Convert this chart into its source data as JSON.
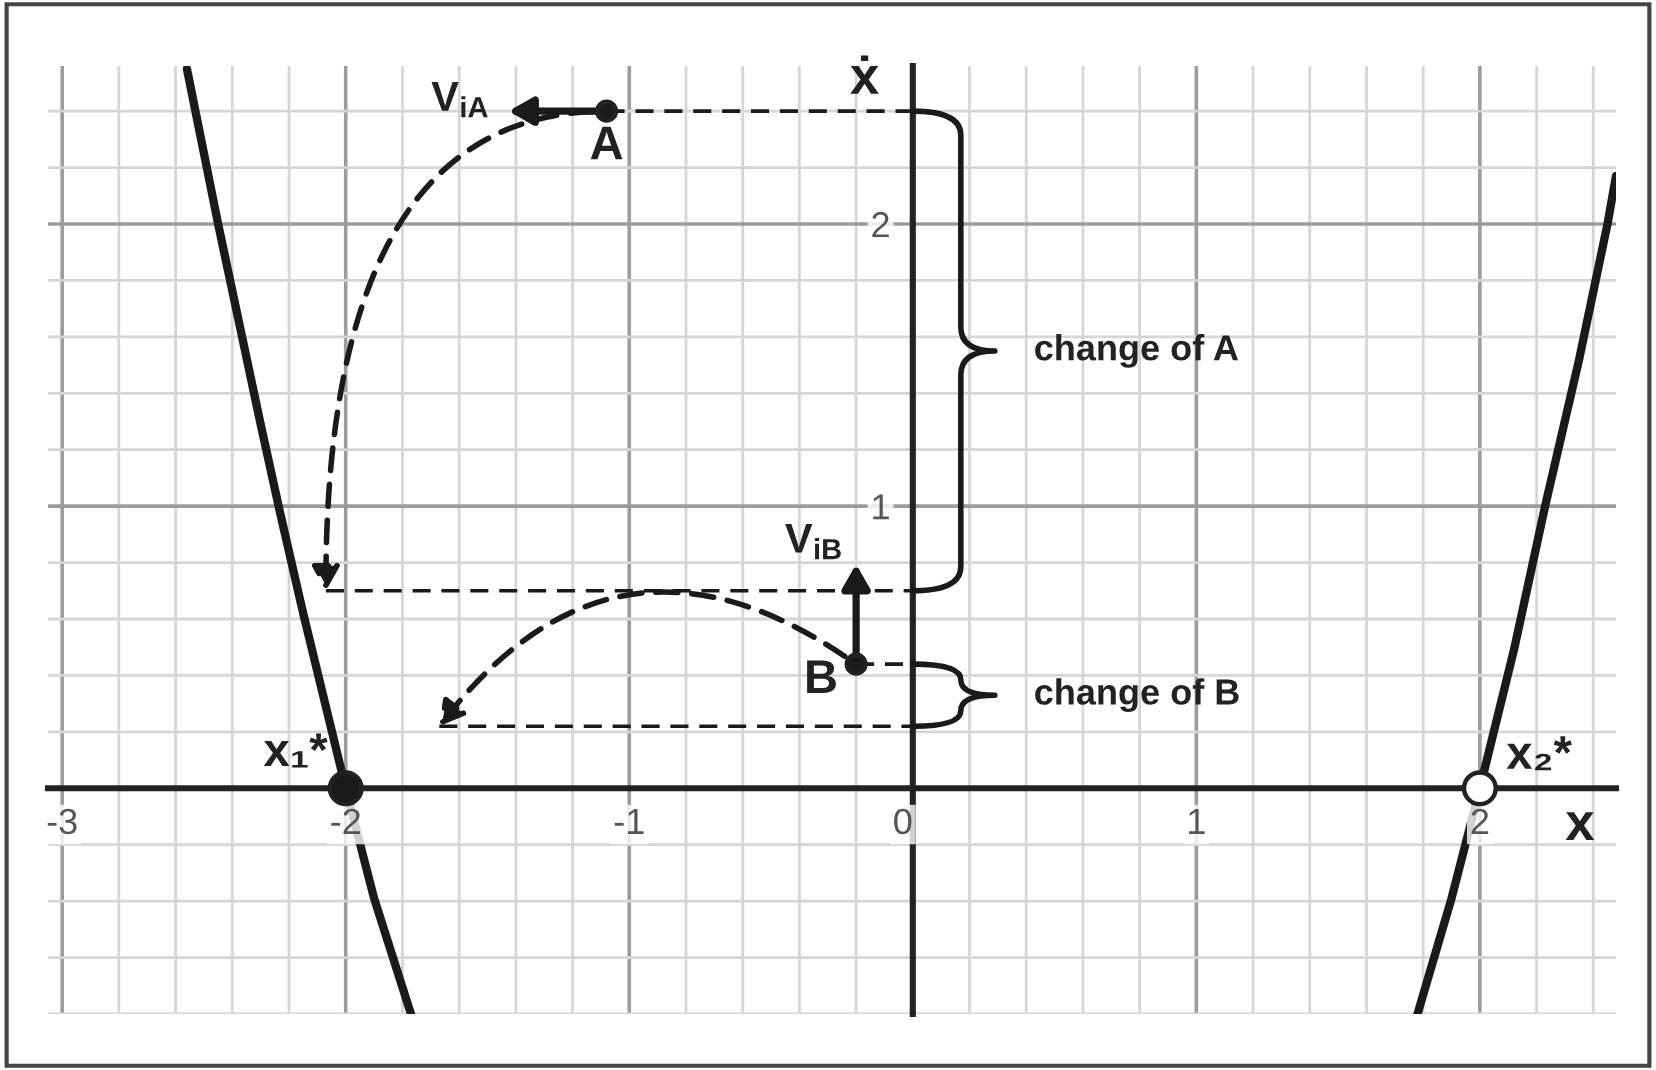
{
  "chart_data": {
    "type": "line",
    "xlabel": "x",
    "ylabel": "ẋ",
    "xlim": [
      -3.05,
      2.48
    ],
    "ylim": [
      -0.8,
      2.56
    ],
    "xticks": [
      -3,
      {
        "value": -2.8,
        "label": null
      },
      {
        "value": -2.6,
        "label": null
      },
      {
        "value": -2.4,
        "label": null
      },
      {
        "value": -2.2,
        "label": null
      },
      -2,
      {
        "value": -1.8,
        "label": null
      },
      {
        "value": -1.6,
        "label": null
      },
      {
        "value": -1.4,
        "label": null
      },
      {
        "value": -1.2,
        "label": null
      },
      -1,
      {
        "value": -0.8,
        "label": null
      },
      {
        "value": -0.6,
        "label": null
      },
      {
        "value": -0.4,
        "label": null
      },
      {
        "value": -0.2,
        "label": null
      },
      0,
      {
        "value": 0.2,
        "label": null
      },
      {
        "value": 0.4,
        "label": null
      },
      {
        "value": 0.6,
        "label": null
      },
      {
        "value": 0.8,
        "label": null
      },
      1,
      {
        "value": 1.2,
        "label": null
      },
      {
        "value": 1.4,
        "label": null
      },
      {
        "value": 1.6,
        "label": null
      },
      {
        "value": 1.8,
        "label": null
      },
      2,
      {
        "value": 2.2,
        "label": null
      },
      {
        "value": 2.4,
        "label": null
      }
    ],
    "yticks": [
      {
        "value": -0.8,
        "label": null
      },
      {
        "value": -0.6,
        "label": null
      },
      {
        "value": -0.4,
        "label": null
      },
      {
        "value": -0.2,
        "label": null
      },
      {
        "value": 0.2,
        "label": null
      },
      {
        "value": 0.4,
        "label": null
      },
      {
        "value": 0.6,
        "label": null
      },
      {
        "value": 0.8,
        "label": null
      },
      1,
      {
        "value": 1.2,
        "label": null
      },
      {
        "value": 1.4,
        "label": null
      },
      {
        "value": 1.6,
        "label": null
      },
      {
        "value": 1.8,
        "label": null
      },
      2,
      {
        "value": 2.2,
        "label": null
      },
      {
        "value": 2.4,
        "label": null
      }
    ],
    "grid": true,
    "series": [
      {
        "line_style": "solid",
        "color": "#1a1a1a",
        "x": [
          -2.56,
          -2.45,
          -2.3,
          -2.23,
          -2.15,
          -2,
          -1.9,
          -1.77
        ],
        "values": [
          2.55,
          2.0,
          1.29,
          0.97,
          0.62,
          0,
          -0.39,
          -0.8
        ]
      },
      {
        "line_style": "solid",
        "color": "#1a1a1a",
        "x": [
          1.78,
          1.9,
          2,
          2.12,
          2.23,
          2.35,
          2.45,
          2.48
        ],
        "values": [
          -0.8,
          -0.39,
          0,
          0.49,
          1.0,
          1.52,
          2.0,
          2.17
        ]
      },
      {
        "line_style": "dashed",
        "color": "#1a1a1a",
        "x": [
          -1.08,
          0
        ],
        "values": [
          2.4,
          2.4
        ]
      },
      {
        "line_style": "dashed",
        "color": "#1a1a1a",
        "x": [
          -2.07,
          0
        ],
        "values": [
          0.7,
          0.7
        ]
      },
      {
        "line_style": "dashed",
        "color": "#1a1a1a",
        "x": [
          -0.2,
          0
        ],
        "values": [
          0.44,
          0.44
        ]
      },
      {
        "line_style": "dashed",
        "color": "#1a1a1a",
        "x": [
          -1.67,
          0
        ],
        "values": [
          0.22,
          0.22
        ]
      },
      {
        "type": "scatter",
        "marker": "circle",
        "color": "#1a1a1a",
        "x": [
          -1.08,
          -0.2
        ],
        "values": [
          2.4,
          0.44
        ]
      },
      {
        "type": "scatter",
        "marker": "circle",
        "color": "#1a1a1a",
        "x": [
          -2
        ],
        "values": [
          0
        ]
      },
      {
        "type": "scatter",
        "marker": "circle",
        "color": "#ffffff",
        "x": [
          2
        ],
        "values": [
          0
        ]
      }
    ],
    "annotations": [
      {
        "text": "A",
        "x": -1.08,
        "y": 2.4
      },
      {
        "text": "B",
        "x": -0.2,
        "y": 0.44
      },
      {
        "text": "x₁*",
        "x": -2,
        "y": 0
      },
      {
        "text": "x₂*",
        "x": 2,
        "y": 0
      },
      {
        "text": "V$_{iA}$",
        "x": -1.08,
        "y": 2.4
      },
      {
        "text": "V$_{iB}$",
        "x": -0.2,
        "y": 0.44
      },
      "change of A",
      "change of B"
    ]
  }
}
